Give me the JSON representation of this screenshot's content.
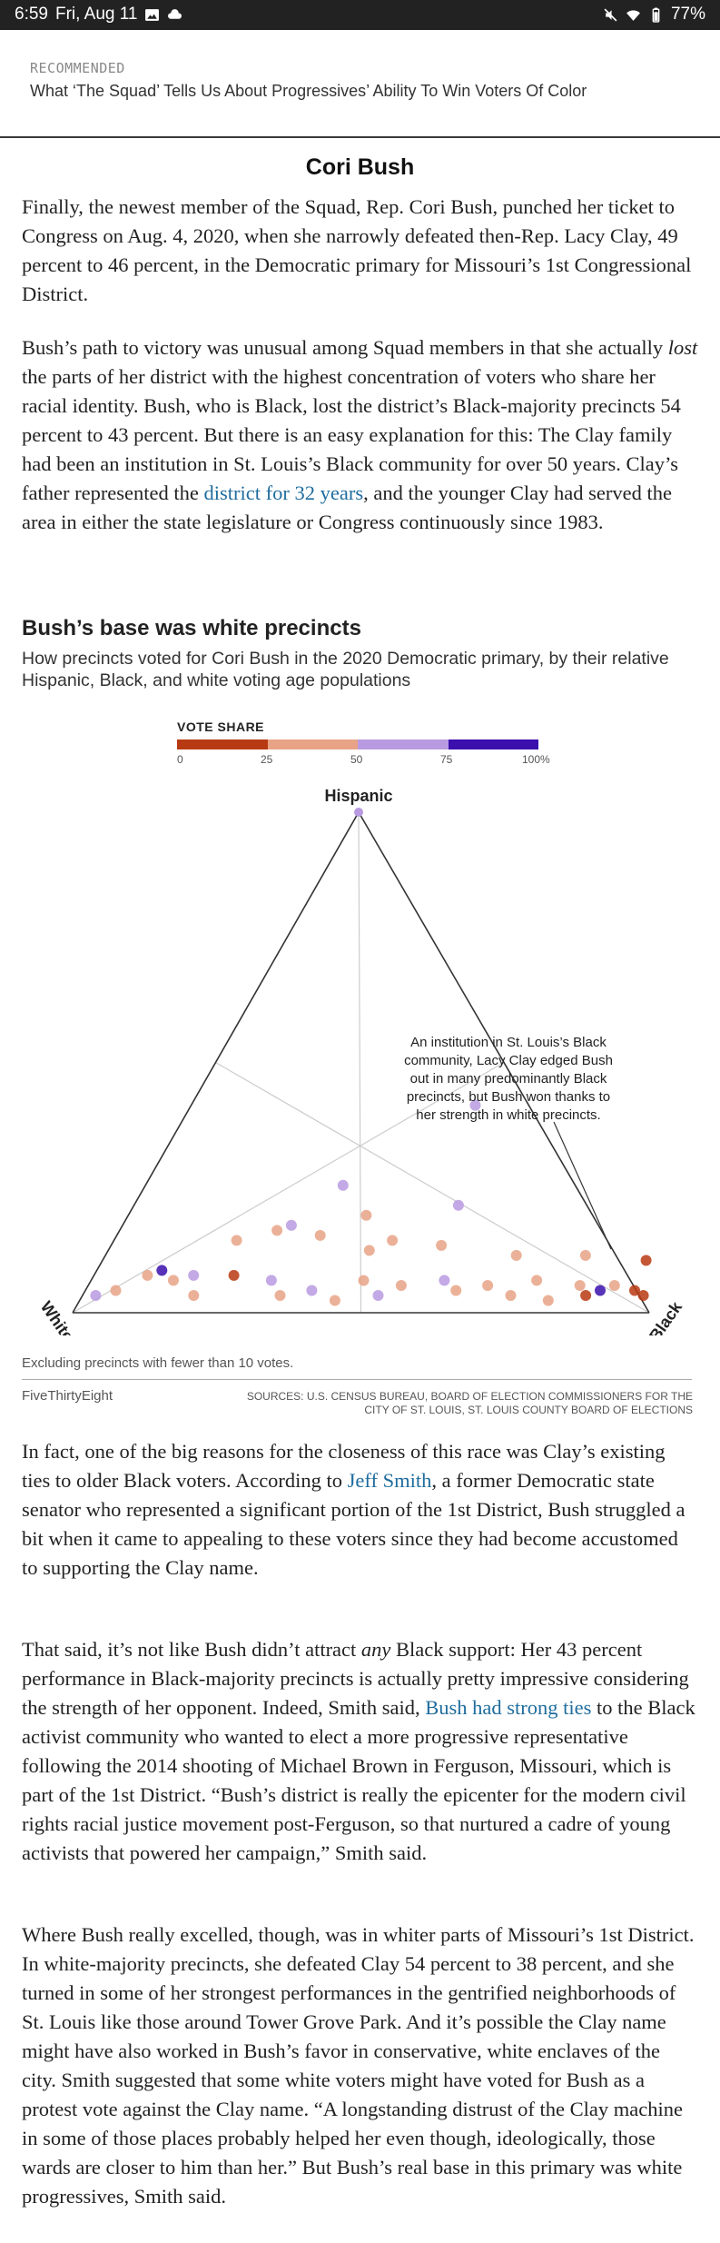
{
  "statusbar": {
    "time": "6:59",
    "date": "Fri, Aug 11",
    "battery": "77%"
  },
  "recommended": {
    "kicker": "RECOMMENDED",
    "title": "What ‘The Squad’ Tells Us About Progressives’ Ability To Win Voters Of Color"
  },
  "section_title": "Cori Bush",
  "paragraphs": {
    "p1": "Finally, the newest member of the Squad, Rep. Cori Bush, punched her ticket to Congress on Aug. 4, 2020, when she narrowly defeated then-Rep. Lacy Clay, 49 percent to 46 percent, in the Democratic primary for Missouri’s 1st Congressional District.",
    "p2_a": "Bush’s path to victory was unusual among Squad members in that she actually ",
    "p2_em": "lost",
    "p2_b": " the parts of her district with the highest concentration of voters who share her racial identity. Bush, who is Black, lost the district’s Black-majority precincts 54 percent to 43 percent. But there is an easy explanation for this: The Clay family had been an institution in St. Louis’s Black community for over 50 years. Clay’s father represented the ",
    "p2_link": "district for 32 years",
    "p2_c": ", and the younger Clay had served the area in either the state legislature or Congress continuously since 1983.",
    "p3_a": "In fact, one of the big reasons for the closeness of this race was Clay’s existing ties to older Black voters. According to ",
    "p3_link": "Jeff Smith",
    "p3_b": ", a former Democratic state senator who represented a significant portion of the 1st District, Bush struggled a bit when it came to appealing to these voters since they had become accustomed to supporting the Clay name.",
    "p4_a": "That said, it’s not like Bush didn’t attract ",
    "p4_em": "any",
    "p4_b": " Black support: Her 43 percent performance in Black-majority precincts is actually pretty impressive considering the strength of her opponent. Indeed, Smith said, ",
    "p4_link": "Bush had strong ties",
    "p4_c": " to the Black activist community who wanted to elect a more progressive representative following the 2014 shooting of Michael Brown in Ferguson, Missouri, which is part of the 1st District. “Bush’s district is really the epicenter for the modern civil rights racial justice movement post-Ferguson, so that nurtured a cadre of young activists that powered her campaign,” Smith said.",
    "p5": "Where Bush really excelled, though, was in whiter parts of Missouri’s 1st District. In white-majority precincts, she defeated Clay 54 percent to 38 percent, and she turned in some of her strongest performances in the gentrified neighborhoods of St. Louis like those around Tower Grove Park. And it’s possible the Clay name might have also worked in Bush’s favor in conservative, white enclaves of the city. Smith suggested that some white voters might have voted for Bush as a protest vote against the Clay name. “A longstanding distrust of the Clay machine in some of those places probably helped her even though, ideologically, those wards are closer to him than her.” But Bush’s real base in this primary was white progressives, Smith said."
  },
  "chart": {
    "title": "Bush’s base was white precincts",
    "subtitle": "How precincts voted for Cori Bush in the 2020 Democratic primary, by their relative Hispanic, Black, and white voting age populations",
    "legend_title": "VOTE SHARE",
    "legend_ticks": [
      "0",
      "25",
      "50",
      "75",
      "100%"
    ],
    "legend_colors": [
      "#b83a12",
      "#e8a386",
      "#b89ae0",
      "#3a0fae"
    ],
    "vertex_labels": {
      "top": "Hispanic",
      "left": "White",
      "right": "Black"
    },
    "annotation": "An institution in St. Louis’s Black community, Lacy Clay edged Bush out in many predominantly Black precincts, but Bush won thanks to her strength in white precincts.",
    "footnote": "Excluding precincts with fewer than 10 votes.",
    "brand": "FiveThirtyEight",
    "sources": "SOURCES: U.S. CENSUS BUREAU, BOARD OF ELECTION COMMISSIONERS FOR THE CITY OF ST. LOUIS, ST. LOUIS COUNTY BOARD OF ELECTIONS"
  },
  "chart_data": {
    "type": "scatter",
    "title": "Bush’s base was white precincts",
    "subtitle": "How precincts voted for Cori Bush in the 2020 Democratic primary, by their relative Hispanic, Black, and white voting age populations",
    "axes": [
      "Hispanic",
      "White",
      "Black"
    ],
    "color_scale": {
      "label": "VOTE SHARE",
      "stops": [
        0,
        25,
        50,
        75,
        100
      ],
      "colors": [
        "#b83a12",
        "#e8a386",
        "#b89ae0",
        "#3a0fae"
      ]
    },
    "points": [
      {
        "hispanic": 0.4,
        "black": 0.5,
        "bush": 60
      },
      {
        "hispanic": 0.24,
        "black": 0.35,
        "bush": 60
      },
      {
        "hispanic": 0.2,
        "black": 0.57,
        "bush": 60
      },
      {
        "hispanic": 0.16,
        "black": 0.3,
        "bush": 60
      },
      {
        "hispanic": 0.15,
        "black": 0.28,
        "bush": 35
      },
      {
        "hispanic": 0.18,
        "black": 0.42,
        "bush": 35
      },
      {
        "hispanic": 0.14,
        "black": 0.36,
        "bush": 40
      },
      {
        "hispanic": 0.13,
        "black": 0.22,
        "bush": 40
      },
      {
        "hispanic": 0.13,
        "black": 0.49,
        "bush": 35
      },
      {
        "hispanic": 0.12,
        "black": 0.58,
        "bush": 35
      },
      {
        "hispanic": 0.11,
        "black": 0.46,
        "bush": 40
      },
      {
        "hispanic": 0.1,
        "black": 0.72,
        "bush": 35
      },
      {
        "hispanic": 0.1,
        "black": 0.84,
        "bush": 40
      },
      {
        "hispanic": 0.09,
        "black": 0.95,
        "bush": 5
      },
      {
        "hispanic": 0.07,
        "black": 0.12,
        "bush": 90
      },
      {
        "hispanic": 0.06,
        "black": 0.1,
        "bush": 35
      },
      {
        "hispanic": 0.06,
        "black": 0.18,
        "bush": 60
      },
      {
        "hispanic": 0.06,
        "black": 0.25,
        "bush": 15
      },
      {
        "hispanic": 0.05,
        "black": 0.15,
        "bush": 35
      },
      {
        "hispanic": 0.05,
        "black": 0.32,
        "bush": 60
      },
      {
        "hispanic": 0.05,
        "black": 0.48,
        "bush": 35
      },
      {
        "hispanic": 0.05,
        "black": 0.62,
        "bush": 60
      },
      {
        "hispanic": 0.05,
        "black": 0.78,
        "bush": 35
      },
      {
        "hispanic": 0.04,
        "black": 0.55,
        "bush": 40
      },
      {
        "hispanic": 0.04,
        "black": 0.7,
        "bush": 35
      },
      {
        "hispanic": 0.04,
        "black": 0.86,
        "bush": 35
      },
      {
        "hispanic": 0.04,
        "black": 0.92,
        "bush": 35
      },
      {
        "hispanic": 0.03,
        "black": 0.06,
        "bush": 35
      },
      {
        "hispanic": 0.03,
        "black": 0.4,
        "bush": 60
      },
      {
        "hispanic": 0.03,
        "black": 0.65,
        "bush": 35
      },
      {
        "hispanic": 0.03,
        "black": 0.9,
        "bush": 85
      },
      {
        "hispanic": 0.03,
        "black": 0.96,
        "bush": 10
      },
      {
        "hispanic": 0.02,
        "black": 0.03,
        "bush": 60
      },
      {
        "hispanic": 0.02,
        "black": 0.2,
        "bush": 35
      },
      {
        "hispanic": 0.02,
        "black": 0.35,
        "bush": 40
      },
      {
        "hispanic": 0.02,
        "black": 0.52,
        "bush": 60
      },
      {
        "hispanic": 0.02,
        "black": 0.75,
        "bush": 35
      },
      {
        "hispanic": 0.02,
        "black": 0.88,
        "bush": 20
      },
      {
        "hispanic": 0.02,
        "black": 0.98,
        "bush": 5
      },
      {
        "hispanic": 0.01,
        "black": 0.45,
        "bush": 35
      },
      {
        "hispanic": 0.01,
        "black": 0.82,
        "bush": 40
      }
    ]
  }
}
